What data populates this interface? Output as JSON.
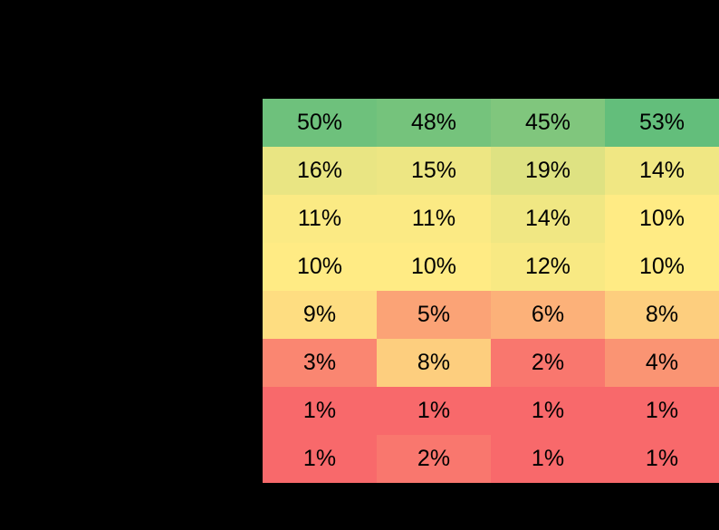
{
  "canvas": {
    "background": "#000000"
  },
  "heatmap": {
    "columns": 4,
    "text_color": "#000000",
    "rows": [
      {
        "cells": [
          {
            "label": "50%",
            "value": 50,
            "color": "#6EC17C"
          },
          {
            "label": "48%",
            "value": 48,
            "color": "#75C37C"
          },
          {
            "label": "45%",
            "value": 45,
            "color": "#80C67D"
          },
          {
            "label": "53%",
            "value": 53,
            "color": "#63BE7B"
          }
        ]
      },
      {
        "cells": [
          {
            "label": "16%",
            "value": 16,
            "color": "#E9E583"
          },
          {
            "label": "15%",
            "value": 15,
            "color": "#EDE683"
          },
          {
            "label": "19%",
            "value": 19,
            "color": "#DEE282"
          },
          {
            "label": "14%",
            "value": 14,
            "color": "#F0E783"
          }
        ]
      },
      {
        "cells": [
          {
            "label": "11%",
            "value": 11,
            "color": "#FBEA84"
          },
          {
            "label": "11%",
            "value": 11,
            "color": "#FBEA84"
          },
          {
            "label": "14%",
            "value": 14,
            "color": "#F0E783"
          },
          {
            "label": "10%",
            "value": 10,
            "color": "#FFEB84"
          }
        ]
      },
      {
        "cells": [
          {
            "label": "10%",
            "value": 10,
            "color": "#FFEB84"
          },
          {
            "label": "10%",
            "value": 10,
            "color": "#FFEB84"
          },
          {
            "label": "12%",
            "value": 12,
            "color": "#F8E983"
          },
          {
            "label": "10%",
            "value": 10,
            "color": "#FFEB84"
          }
        ]
      },
      {
        "cells": [
          {
            "label": "9%",
            "value": 9,
            "color": "#FEDD81"
          },
          {
            "label": "5%",
            "value": 5,
            "color": "#FBA376"
          },
          {
            "label": "6%",
            "value": 6,
            "color": "#FCB179"
          },
          {
            "label": "8%",
            "value": 8,
            "color": "#FDCE7E"
          }
        ]
      },
      {
        "cells": [
          {
            "label": "3%",
            "value": 3,
            "color": "#FA8671"
          },
          {
            "label": "8%",
            "value": 8,
            "color": "#FDCE7E"
          },
          {
            "label": "2%",
            "value": 2,
            "color": "#F9776E"
          },
          {
            "label": "4%",
            "value": 4,
            "color": "#FA9473"
          }
        ]
      },
      {
        "cells": [
          {
            "label": "1%",
            "value": 1,
            "color": "#F8696B"
          },
          {
            "label": "1%",
            "value": 1,
            "color": "#F8696B"
          },
          {
            "label": "1%",
            "value": 1,
            "color": "#F8696B"
          },
          {
            "label": "1%",
            "value": 1,
            "color": "#F8696B"
          }
        ]
      },
      {
        "cells": [
          {
            "label": "1%",
            "value": 1,
            "color": "#F8696B"
          },
          {
            "label": "2%",
            "value": 2,
            "color": "#F9776E"
          },
          {
            "label": "1%",
            "value": 1,
            "color": "#F8696B"
          },
          {
            "label": "1%",
            "value": 1,
            "color": "#F8696B"
          }
        ]
      }
    ]
  },
  "chart_data": {
    "type": "heatmap",
    "rows": 8,
    "columns": 4,
    "values": [
      [
        50,
        48,
        45,
        53
      ],
      [
        16,
        15,
        19,
        14
      ],
      [
        11,
        11,
        14,
        10
      ],
      [
        10,
        10,
        12,
        10
      ],
      [
        9,
        5,
        6,
        8
      ],
      [
        3,
        8,
        2,
        4
      ],
      [
        1,
        1,
        1,
        1
      ],
      [
        1,
        2,
        1,
        1
      ]
    ],
    "value_format": "percent",
    "cell_text_color": "#000000",
    "colorscale": {
      "type": "3-color-scale",
      "min": {
        "value": 1,
        "color": "#F8696B"
      },
      "mid": {
        "value": 10,
        "color": "#FFEB84"
      },
      "max": {
        "value": 53,
        "color": "#63BE7B"
      }
    },
    "legend": "none",
    "grid": "off"
  }
}
